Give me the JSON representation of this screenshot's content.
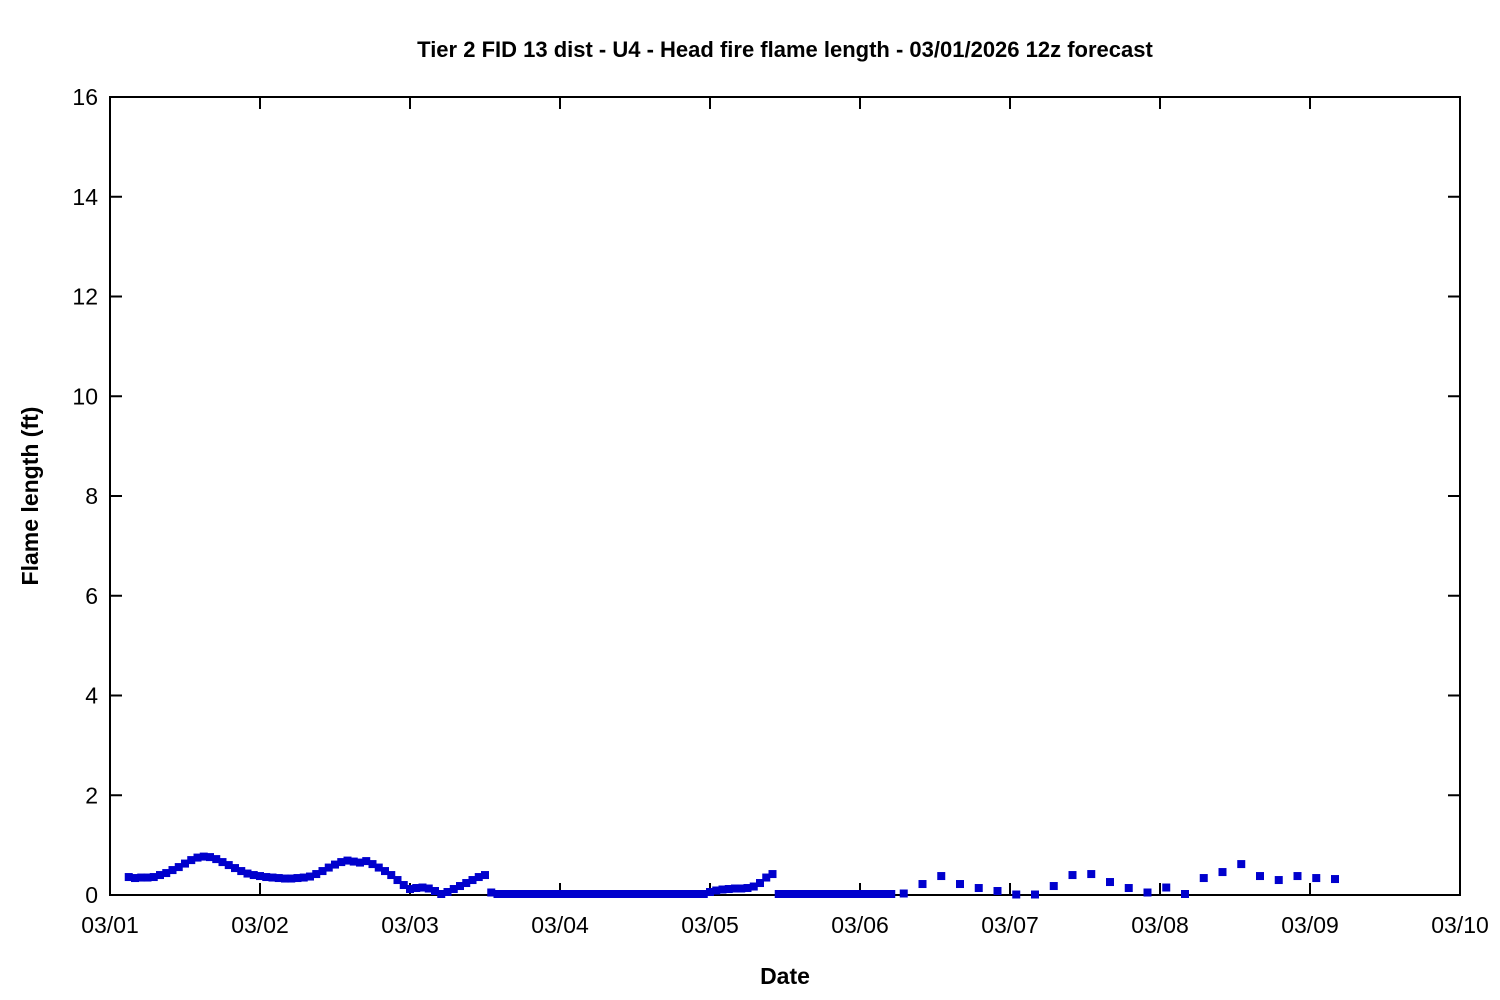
{
  "page": {
    "background": "#ffffff",
    "foreground": "#000000"
  },
  "chart_data": {
    "type": "scatter",
    "title": "Tier 2 FID 13 dist - U4 - Head fire flame length - 03/01/2026 12z forecast",
    "xlabel": "Date",
    "ylabel": "Flame length (ft)",
    "legend": false,
    "grid": false,
    "marker": {
      "shape": "square",
      "color": "#0000CD",
      "size": 8
    },
    "x_unit": "hours since 03/01 00:00",
    "xlim": [
      0,
      216
    ],
    "ylim": [
      0,
      16
    ],
    "x_ticks": [
      {
        "t": 0,
        "label": "03/01"
      },
      {
        "t": 24,
        "label": "03/02"
      },
      {
        "t": 48,
        "label": "03/03"
      },
      {
        "t": 72,
        "label": "03/04"
      },
      {
        "t": 96,
        "label": "03/05"
      },
      {
        "t": 120,
        "label": "03/06"
      },
      {
        "t": 144,
        "label": "03/07"
      },
      {
        "t": 168,
        "label": "03/08"
      },
      {
        "t": 192,
        "label": "03/09"
      },
      {
        "t": 216,
        "label": "03/10"
      }
    ],
    "y_ticks": [
      {
        "v": 0,
        "label": "0"
      },
      {
        "v": 2,
        "label": "2"
      },
      {
        "v": 4,
        "label": "4"
      },
      {
        "v": 6,
        "label": "6"
      },
      {
        "v": 8,
        "label": "8"
      },
      {
        "v": 10,
        "label": "10"
      },
      {
        "v": 12,
        "label": "12"
      },
      {
        "v": 14,
        "label": "14"
      },
      {
        "v": 16,
        "label": "16"
      }
    ],
    "series_notes": "hourly points 03/01 03:00 - 03/06 05:00, then 3-hourly points through 03/09",
    "points": [
      [
        3,
        0.36
      ],
      [
        4,
        0.34
      ],
      [
        5,
        0.35
      ],
      [
        6,
        0.35
      ],
      [
        7,
        0.36
      ],
      [
        8,
        0.4
      ],
      [
        9,
        0.44
      ],
      [
        10,
        0.5
      ],
      [
        11,
        0.56
      ],
      [
        12,
        0.63
      ],
      [
        13,
        0.7
      ],
      [
        14,
        0.75
      ],
      [
        15,
        0.77
      ],
      [
        16,
        0.76
      ],
      [
        17,
        0.72
      ],
      [
        18,
        0.66
      ],
      [
        19,
        0.6
      ],
      [
        20,
        0.54
      ],
      [
        21,
        0.48
      ],
      [
        22,
        0.43
      ],
      [
        23,
        0.4
      ],
      [
        24,
        0.38
      ],
      [
        25,
        0.36
      ],
      [
        26,
        0.35
      ],
      [
        27,
        0.34
      ],
      [
        28,
        0.33
      ],
      [
        29,
        0.33
      ],
      [
        30,
        0.34
      ],
      [
        31,
        0.35
      ],
      [
        32,
        0.37
      ],
      [
        33,
        0.42
      ],
      [
        34,
        0.48
      ],
      [
        35,
        0.55
      ],
      [
        36,
        0.61
      ],
      [
        37,
        0.66
      ],
      [
        38,
        0.69
      ],
      [
        39,
        0.67
      ],
      [
        40,
        0.65
      ],
      [
        41,
        0.68
      ],
      [
        42,
        0.62
      ],
      [
        43,
        0.55
      ],
      [
        44,
        0.48
      ],
      [
        45,
        0.4
      ],
      [
        46,
        0.3
      ],
      [
        47,
        0.2
      ],
      [
        48,
        0.12
      ],
      [
        49,
        0.14
      ],
      [
        50,
        0.15
      ],
      [
        51,
        0.13
      ],
      [
        52,
        0.08
      ],
      [
        53,
        0.02
      ],
      [
        54,
        0.06
      ],
      [
        55,
        0.12
      ],
      [
        56,
        0.18
      ],
      [
        57,
        0.24
      ],
      [
        58,
        0.3
      ],
      [
        59,
        0.36
      ],
      [
        60,
        0.4
      ],
      [
        61,
        0.05
      ],
      [
        62,
        0.02
      ],
      [
        63,
        0.02
      ],
      [
        64,
        0.02
      ],
      [
        65,
        0.02
      ],
      [
        66,
        0.02
      ],
      [
        67,
        0.02
      ],
      [
        68,
        0.02
      ],
      [
        69,
        0.02
      ],
      [
        70,
        0.02
      ],
      [
        71,
        0.02
      ],
      [
        72,
        0.02
      ],
      [
        73,
        0.02
      ],
      [
        74,
        0.02
      ],
      [
        75,
        0.02
      ],
      [
        76,
        0.02
      ],
      [
        77,
        0.02
      ],
      [
        78,
        0.02
      ],
      [
        79,
        0.02
      ],
      [
        80,
        0.02
      ],
      [
        81,
        0.02
      ],
      [
        82,
        0.02
      ],
      [
        83,
        0.02
      ],
      [
        84,
        0.02
      ],
      [
        85,
        0.02
      ],
      [
        86,
        0.02
      ],
      [
        87,
        0.02
      ],
      [
        88,
        0.02
      ],
      [
        89,
        0.02
      ],
      [
        90,
        0.02
      ],
      [
        91,
        0.02
      ],
      [
        92,
        0.02
      ],
      [
        93,
        0.02
      ],
      [
        94,
        0.02
      ],
      [
        95,
        0.02
      ],
      [
        96,
        0.06
      ],
      [
        97,
        0.09
      ],
      [
        98,
        0.11
      ],
      [
        99,
        0.12
      ],
      [
        100,
        0.13
      ],
      [
        101,
        0.13
      ],
      [
        102,
        0.14
      ],
      [
        103,
        0.17
      ],
      [
        104,
        0.24
      ],
      [
        105,
        0.35
      ],
      [
        106,
        0.42
      ],
      [
        107,
        0.02
      ],
      [
        108,
        0.02
      ],
      [
        109,
        0.02
      ],
      [
        110,
        0.02
      ],
      [
        111,
        0.02
      ],
      [
        112,
        0.02
      ],
      [
        113,
        0.02
      ],
      [
        114,
        0.02
      ],
      [
        115,
        0.02
      ],
      [
        116,
        0.02
      ],
      [
        117,
        0.02
      ],
      [
        118,
        0.02
      ],
      [
        119,
        0.02
      ],
      [
        120,
        0.02
      ],
      [
        121,
        0.02
      ],
      [
        122,
        0.02
      ],
      [
        123,
        0.02
      ],
      [
        124,
        0.02
      ],
      [
        125,
        0.02
      ],
      [
        127,
        0.03
      ],
      [
        130,
        0.22
      ],
      [
        133,
        0.38
      ],
      [
        136,
        0.22
      ],
      [
        139,
        0.14
      ],
      [
        142,
        0.08
      ],
      [
        145,
        0.01
      ],
      [
        148,
        0.01
      ],
      [
        151,
        0.18
      ],
      [
        154,
        0.4
      ],
      [
        157,
        0.42
      ],
      [
        160,
        0.26
      ],
      [
        163,
        0.14
      ],
      [
        166,
        0.05
      ],
      [
        169,
        0.15
      ],
      [
        172,
        0.02
      ],
      [
        175,
        0.34
      ],
      [
        178,
        0.46
      ],
      [
        181,
        0.62
      ],
      [
        184,
        0.38
      ],
      [
        187,
        0.3
      ],
      [
        190,
        0.38
      ],
      [
        193,
        0.34
      ],
      [
        196,
        0.32
      ]
    ]
  }
}
